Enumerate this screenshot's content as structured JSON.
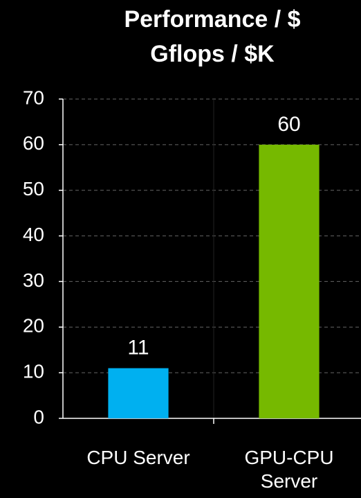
{
  "chart_data": {
    "type": "bar",
    "title": "Performance / $",
    "subtitle": "Gflops / $K",
    "categories": [
      "CPU Server",
      "GPU-CPU Server"
    ],
    "values": [
      11,
      60
    ],
    "colors": [
      "#00b0f0",
      "#76b900"
    ],
    "ylim": [
      0,
      70
    ],
    "yticks": [
      0,
      10,
      20,
      30,
      40,
      50,
      60,
      70
    ],
    "grid": true
  }
}
